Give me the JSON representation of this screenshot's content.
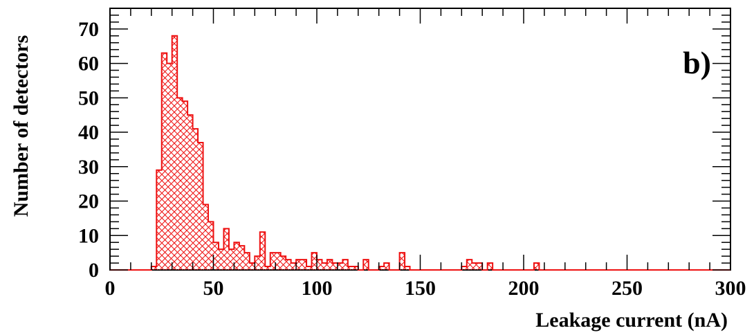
{
  "chart_data": {
    "type": "bar",
    "panel_label": "b)",
    "xlabel": "Leakage current (nA)",
    "ylabel": "Number of detectors",
    "xlim": [
      0,
      300
    ],
    "ylim": [
      0,
      76
    ],
    "x_ticks": [
      0,
      50,
      100,
      150,
      200,
      250,
      300
    ],
    "y_ticks": [
      0,
      10,
      20,
      30,
      40,
      50,
      60,
      70
    ],
    "bin_width": 2.5,
    "x_start": 0,
    "values": [
      0,
      0,
      0,
      0,
      0,
      0,
      0,
      0,
      1,
      29,
      63,
      60,
      68,
      50,
      49,
      45,
      41,
      37,
      19,
      14,
      8,
      6,
      12,
      6,
      8,
      7,
      5,
      2,
      4,
      11,
      1,
      5,
      5,
      4,
      3,
      2,
      3,
      3,
      1,
      5,
      3,
      2,
      3,
      2,
      2,
      3,
      1,
      1,
      0,
      3,
      0,
      0,
      1,
      2,
      0,
      0,
      5,
      1,
      0,
      0,
      0,
      0,
      0,
      0,
      0,
      0,
      0,
      0,
      1,
      3,
      2,
      2,
      0,
      2,
      0,
      0,
      0,
      0,
      0,
      0,
      0,
      0,
      2,
      0,
      0,
      0,
      0,
      0,
      0,
      0,
      0,
      0,
      0,
      0,
      0,
      0,
      0,
      0,
      0,
      0,
      0,
      0,
      0,
      0,
      0,
      0,
      0,
      0,
      0,
      0,
      0,
      0,
      0,
      0,
      0,
      0,
      0,
      0,
      0,
      0
    ],
    "line_color": "#ee1111",
    "hatch": "crosshatch"
  }
}
